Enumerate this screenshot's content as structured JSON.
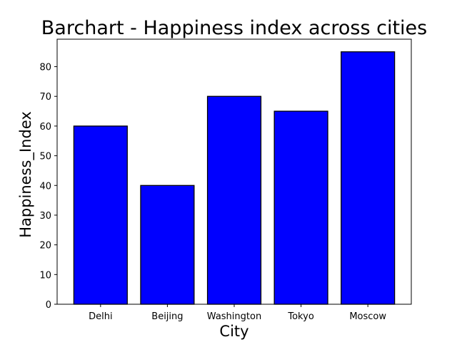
{
  "chart_data": {
    "type": "bar",
    "title": "Barchart - Happiness index across cities",
    "xlabel": "City",
    "ylabel": "Happiness_Index",
    "categories": [
      "Delhi",
      "Beijing",
      "Washington",
      "Tokyo",
      "Moscow"
    ],
    "values": [
      60,
      40,
      70,
      65,
      85
    ],
    "ylim": [
      0,
      89.25
    ],
    "yticks": [
      0,
      10,
      20,
      30,
      40,
      50,
      60,
      70,
      80
    ],
    "grid": false,
    "legend": null,
    "bar_color": "#0000ff",
    "edge_color": "#000000"
  }
}
